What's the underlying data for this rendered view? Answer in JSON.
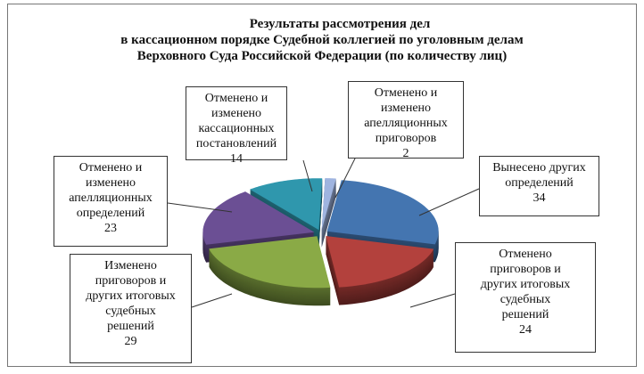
{
  "chart_data": {
    "type": "pie",
    "style": "3d-exploded",
    "title": [
      "Результаты рассмотрения  дел",
      "в кассационном порядке Судебной коллегией  по уголовным делам",
      "Верховного Суда Российской Федерации (по количеству лиц)"
    ],
    "slices": [
      {
        "label": [
          "Отменено и",
          "изменено",
          "апелляционных",
          "приговоров"
        ],
        "value": 2,
        "color": "#9fb4e0"
      },
      {
        "label": [
          "Вынесено других",
          "определений"
        ],
        "value": 34,
        "color": "#4475b0"
      },
      {
        "label": [
          "Отменено",
          "приговоров и",
          "других итоговых",
          "судебных",
          "решений"
        ],
        "value": 24,
        "color": "#b3413d"
      },
      {
        "label": [
          "Изменено",
          "приговоров и",
          "других итоговых",
          "судебных",
          "решений"
        ],
        "value": 29,
        "color": "#8aaa46"
      },
      {
        "label": [
          "Отменено и",
          "изменено",
          "апелляционных",
          "определений"
        ],
        "value": 23,
        "color": "#6b4f94"
      },
      {
        "label": [
          "Отменено и",
          "изменено",
          "кассационных",
          "постановлений"
        ],
        "value": 14,
        "color": "#2f97ad"
      }
    ]
  }
}
